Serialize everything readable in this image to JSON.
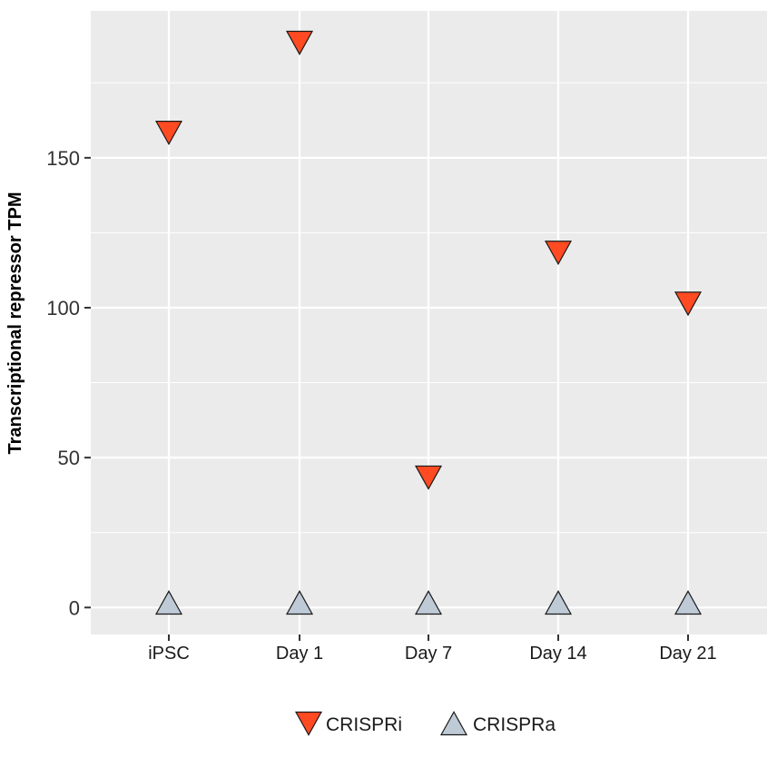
{
  "chart_data": {
    "type": "scatter",
    "categories": [
      "iPSC",
      "Day 1",
      "Day 7",
      "Day 14",
      "Day 21"
    ],
    "series": [
      {
        "name": "CRISPRi",
        "values": [
          159,
          189,
          44,
          119,
          102
        ],
        "marker": "triangle-down",
        "color": "#ff4a22"
      },
      {
        "name": "CRISPRa",
        "values": [
          1,
          1,
          1,
          1,
          1
        ],
        "marker": "triangle-up",
        "color": "#bfcad7"
      }
    ],
    "title": "",
    "xlabel": "",
    "ylabel": "Transcriptional repressor TPM",
    "ylim": [
      -9,
      199
    ],
    "yticks": [
      0,
      50,
      100,
      150
    ],
    "y_minor_ticks": [
      25,
      75,
      125,
      175
    ],
    "grid": true,
    "panel_background": "#ebebeb",
    "grid_color": "#ffffff",
    "legend_position": "bottom"
  }
}
